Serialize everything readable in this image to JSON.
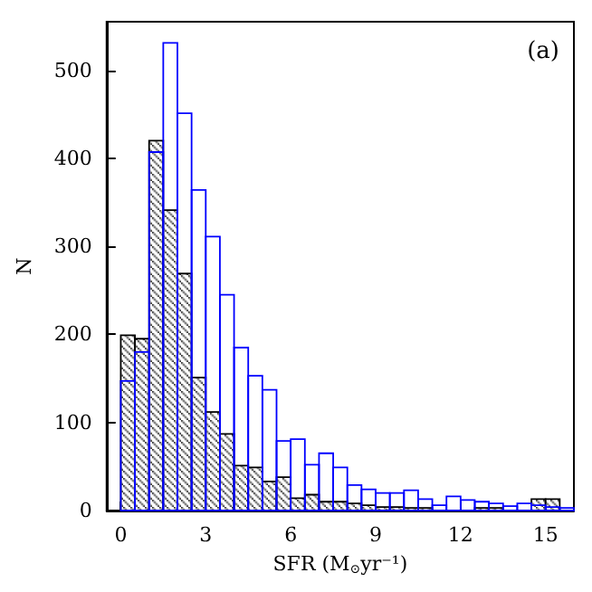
{
  "chart_data": {
    "type": "histogram",
    "xlabel": "SFR (M$_{⊙}$yr⁻¹)",
    "ylabel": "N",
    "annotations": [
      "(a)"
    ],
    "bins": [
      0,
      0.5,
      1,
      1.5,
      2,
      2.5,
      3,
      3.5,
      4,
      4.5,
      5,
      5.5,
      6,
      6.5,
      7,
      7.5,
      8,
      8.5,
      9,
      9.5,
      10,
      10.5,
      11,
      11.5,
      12,
      12.5,
      13,
      13.5,
      14,
      14.5,
      15,
      15.5,
      16
    ],
    "series": [
      {
        "color": "#000000",
        "values": [
          199,
          195,
          420,
          341,
          269,
          151,
          112,
          87,
          51,
          49,
          33,
          38,
          14,
          18,
          10,
          10,
          8,
          6,
          4,
          4,
          3,
          3,
          null,
          null,
          0,
          3,
          3,
          0,
          0,
          13,
          13,
          0
        ]
      },
      {
        "color": "#0000ff",
        "values": [
          147,
          180,
          407,
          531,
          451,
          364,
          311,
          245,
          185,
          153,
          137,
          79,
          81,
          52,
          65,
          49,
          29,
          24,
          20,
          20,
          23,
          13,
          6,
          16,
          12,
          10,
          8,
          5,
          8,
          6,
          4,
          3
        ]
      }
    ],
    "xlim": [
      -0.5,
      16
    ],
    "xticks": [
      0,
      3,
      6,
      9,
      12,
      15
    ],
    "ylim": [
      0,
      555
    ],
    "yticks": [
      0,
      100,
      200,
      300,
      400,
      500
    ],
    "grid": false
  }
}
